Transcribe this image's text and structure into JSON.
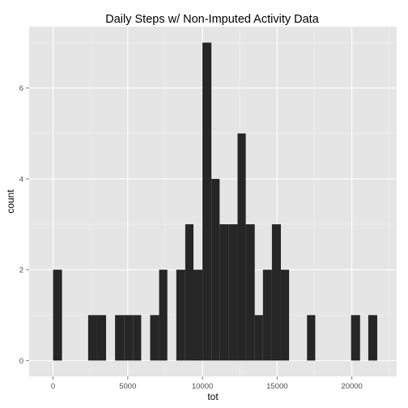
{
  "chart_data": {
    "type": "bar",
    "title": "Daily Steps w/ Non-Imputed Activity Data",
    "xlabel": "tot",
    "ylabel": "count",
    "xlim": [
      -1600,
      23000
    ],
    "ylim": [
      -0.35,
      7.35
    ],
    "x_ticks": [
      0,
      5000,
      10000,
      15000,
      20000
    ],
    "y_ticks": [
      0,
      2,
      4,
      6
    ],
    "x_tick_labels": [
      "0",
      "5000",
      "10000",
      "15000",
      "20000"
    ],
    "y_tick_labels": [
      "0",
      "2",
      "4",
      "6"
    ],
    "grid": true,
    "background": "#e5e5e5",
    "bar_color": "#262626",
    "bins": [
      {
        "start": 0,
        "end": 600,
        "count": 2
      },
      {
        "start": 2350,
        "end": 2950,
        "count": 1
      },
      {
        "start": 2950,
        "end": 3550,
        "count": 1
      },
      {
        "start": 4150,
        "end": 4750,
        "count": 1
      },
      {
        "start": 4750,
        "end": 5350,
        "count": 1
      },
      {
        "start": 5350,
        "end": 5900,
        "count": 1
      },
      {
        "start": 6500,
        "end": 7100,
        "count": 1
      },
      {
        "start": 7100,
        "end": 7650,
        "count": 2
      },
      {
        "start": 8250,
        "end": 8850,
        "count": 2
      },
      {
        "start": 8850,
        "end": 9400,
        "count": 3
      },
      {
        "start": 9400,
        "end": 10000,
        "count": 2
      },
      {
        "start": 10000,
        "end": 10600,
        "count": 7
      },
      {
        "start": 10600,
        "end": 11150,
        "count": 4
      },
      {
        "start": 11150,
        "end": 11750,
        "count": 3
      },
      {
        "start": 11750,
        "end": 12350,
        "count": 3
      },
      {
        "start": 12350,
        "end": 12900,
        "count": 5
      },
      {
        "start": 12900,
        "end": 13500,
        "count": 3
      },
      {
        "start": 13500,
        "end": 14050,
        "count": 1
      },
      {
        "start": 14050,
        "end": 14650,
        "count": 2
      },
      {
        "start": 14650,
        "end": 15250,
        "count": 3
      },
      {
        "start": 15250,
        "end": 15800,
        "count": 2
      },
      {
        "start": 17000,
        "end": 17550,
        "count": 1
      },
      {
        "start": 19950,
        "end": 20550,
        "count": 1
      },
      {
        "start": 21100,
        "end": 21700,
        "count": 1
      }
    ]
  }
}
